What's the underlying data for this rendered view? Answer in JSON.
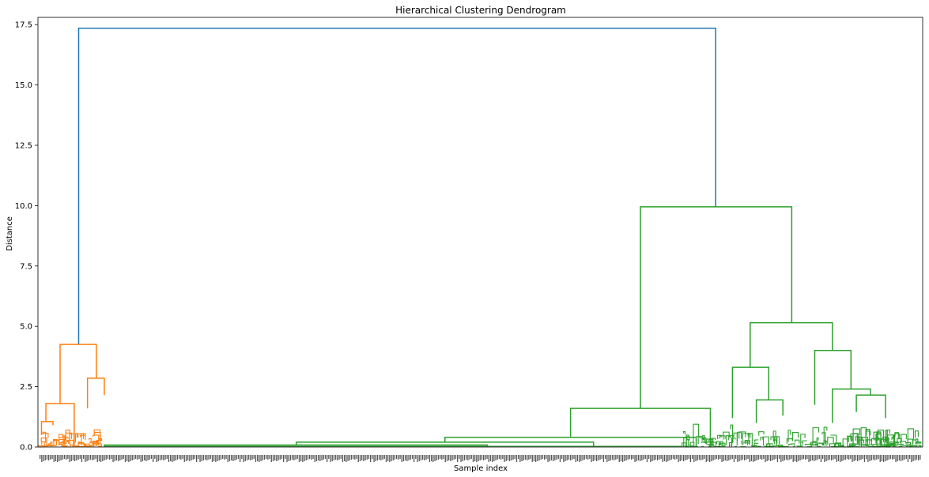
{
  "chart_data": {
    "type": "dendrogram",
    "title": "Hierarchical Clustering Dendrogram",
    "xlabel": "Sample index",
    "ylabel": "Distance",
    "ylim": [
      0,
      17.8
    ],
    "yticks": [
      "0.0",
      "2.5",
      "5.0",
      "7.5",
      "10.0",
      "12.5",
      "15.0",
      "17.5"
    ],
    "ytick_values": [
      0,
      2.5,
      5,
      7.5,
      10,
      12.5,
      15,
      17.5
    ],
    "colors": {
      "root": "#1f77b4",
      "cluster_1": "#ff7f0e",
      "cluster_2": "#2ca02c"
    },
    "merges": [
      {
        "name": "root",
        "color": "root",
        "left_x": 0.046,
        "right_x": 0.766,
        "left_h": 4.25,
        "right_h": 9.95,
        "height": 17.35
      },
      {
        "name": "cluster-1-top",
        "color": "cluster_1",
        "left_x": 0.025,
        "right_x": 0.066,
        "left_h": 1.8,
        "right_h": 2.85,
        "height": 4.25
      },
      {
        "name": "cluster-1-left",
        "color": "cluster_1",
        "left_x": 0.009,
        "right_x": 0.041,
        "left_h": 1.05,
        "right_h": 0.0,
        "height": 1.8
      },
      {
        "name": "cluster-1-left-sub",
        "color": "cluster_1",
        "left_x": 0.004,
        "right_x": 0.017,
        "left_h": 0.5,
        "right_h": 0.9,
        "height": 1.05
      },
      {
        "name": "cluster-1-right",
        "color": "cluster_1",
        "left_x": 0.056,
        "right_x": 0.075,
        "left_h": 1.6,
        "right_h": 2.15,
        "height": 2.85
      },
      {
        "name": "cluster-2-top",
        "color": "cluster_2",
        "left_x": 0.681,
        "right_x": 0.852,
        "left_h": 1.6,
        "right_h": 5.15,
        "height": 9.95
      },
      {
        "name": "cluster-2-mid",
        "color": "cluster_2",
        "left_x": 0.602,
        "right_x": 0.76,
        "left_h": 0.4,
        "right_h": 0.0,
        "height": 1.6
      },
      {
        "name": "cluster-2-chain-a",
        "color": "cluster_2",
        "left_x": 0.46,
        "right_x": 0.744,
        "left_h": 0.2,
        "right_h": 0.0,
        "height": 0.4
      },
      {
        "name": "cluster-2-chain-b",
        "color": "cluster_2",
        "left_x": 0.292,
        "right_x": 0.628,
        "left_h": 0.08,
        "right_h": 0.0,
        "height": 0.2
      },
      {
        "name": "cluster-2-chain-c",
        "color": "cluster_2",
        "left_x": 0.075,
        "right_x": 0.508,
        "left_h": 0.0,
        "right_h": 0.0,
        "height": 0.08
      },
      {
        "name": "cluster-2-right",
        "color": "cluster_2",
        "left_x": 0.805,
        "right_x": 0.898,
        "left_h": 3.3,
        "right_h": 4.0,
        "height": 5.15
      },
      {
        "name": "cluster-2-right-a",
        "color": "cluster_2",
        "left_x": 0.785,
        "right_x": 0.826,
        "left_h": 1.2,
        "right_h": 1.95,
        "height": 3.3
      },
      {
        "name": "cluster-2-right-b",
        "color": "cluster_2",
        "left_x": 0.878,
        "right_x": 0.919,
        "left_h": 1.75,
        "right_h": 2.4,
        "height": 4.0
      },
      {
        "name": "cluster-2-right-b2",
        "color": "cluster_2",
        "left_x": 0.898,
        "right_x": 0.941,
        "left_h": 1.0,
        "right_h": 2.15,
        "height": 2.4
      },
      {
        "name": "cluster-2-right-b3",
        "color": "cluster_2",
        "left_x": 0.925,
        "right_x": 0.958,
        "left_h": 1.45,
        "right_h": 1.2,
        "height": 2.15
      },
      {
        "name": "cluster-2-right-a2",
        "color": "cluster_2",
        "left_x": 0.812,
        "right_x": 0.842,
        "left_h": 1.0,
        "right_h": 1.3,
        "height": 1.95
      }
    ]
  }
}
